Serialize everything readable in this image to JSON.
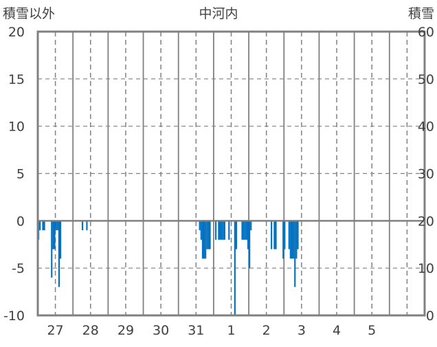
{
  "chart_data": {
    "type": "bar",
    "title": "中河内",
    "ylabel_left": "積雪以外",
    "ylabel_right": "積雪",
    "ylim_left": [
      -10,
      20
    ],
    "yticks_left": [
      "-10",
      "-5",
      "0",
      "5",
      "10",
      "15",
      "20"
    ],
    "ylim_right": [
      0,
      60
    ],
    "yticks_right": [
      "0",
      "10",
      "20",
      "30",
      "40",
      "50",
      "60"
    ],
    "x_tick_labels": [
      "27",
      "28",
      "29",
      "30",
      "31",
      "1",
      "2",
      "3",
      "4",
      "5"
    ],
    "x_unit": "hour index from start of day 27 (11 days, 264 hours)",
    "grid": true,
    "bar_color": "#0070C0",
    "series": [
      {
        "name": "積雪以外",
        "axis": "left",
        "points": [
          [
            0,
            -2
          ],
          [
            1,
            -1
          ],
          [
            3,
            -1
          ],
          [
            4,
            -1
          ],
          [
            9,
            -6
          ],
          [
            10,
            -3
          ],
          [
            11,
            -3
          ],
          [
            12,
            -1
          ],
          [
            13,
            -1
          ],
          [
            14,
            -7
          ],
          [
            15,
            -4
          ],
          [
            30,
            -1
          ],
          [
            33,
            -1
          ],
          [
            110,
            -1
          ],
          [
            111,
            -2
          ],
          [
            112,
            -4
          ],
          [
            113,
            -4
          ],
          [
            114,
            -4
          ],
          [
            115,
            -3
          ],
          [
            116,
            -3
          ],
          [
            117,
            -3
          ],
          [
            121,
            -2
          ],
          [
            123,
            -2
          ],
          [
            124,
            -2
          ],
          [
            125,
            -2
          ],
          [
            126,
            -2
          ],
          [
            127,
            -2
          ],
          [
            130,
            -2
          ],
          [
            134,
            -10
          ],
          [
            135,
            -3
          ],
          [
            139,
            -2
          ],
          [
            140,
            -2
          ],
          [
            141,
            -2
          ],
          [
            142,
            -2
          ],
          [
            143,
            -3
          ],
          [
            144,
            -5
          ],
          [
            145,
            -1
          ],
          [
            159,
            -3
          ],
          [
            161,
            -3
          ],
          [
            162,
            -3
          ],
          [
            167,
            -4
          ],
          [
            168,
            -3
          ],
          [
            171,
            -3
          ],
          [
            172,
            -4
          ],
          [
            173,
            -4
          ],
          [
            174,
            -4
          ],
          [
            175,
            -7
          ],
          [
            176,
            -4
          ],
          [
            177,
            -3
          ]
        ]
      }
    ]
  }
}
